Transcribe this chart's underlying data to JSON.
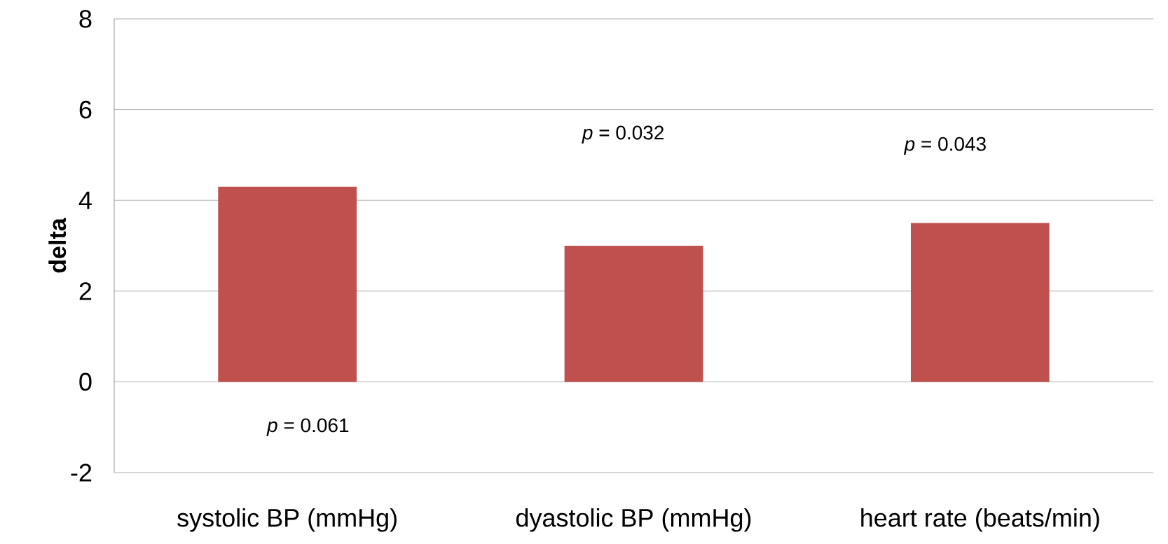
{
  "chart_data": {
    "type": "bar",
    "ylabel": "delta",
    "categories": [
      "systolic BP (mmHg)",
      "dyastolic BP (mmHg)",
      "heart rate (beats/min)"
    ],
    "values": [
      4.3,
      3.0,
      3.5
    ],
    "color": "#c0504d",
    "ylim": [
      -2,
      8
    ],
    "yticks": [
      -2,
      0,
      2,
      4,
      6,
      8
    ],
    "grid": "y",
    "annotations": [
      "*p* = 0.061",
      "*p* = 0.032",
      "*p* = 0.043"
    ]
  }
}
